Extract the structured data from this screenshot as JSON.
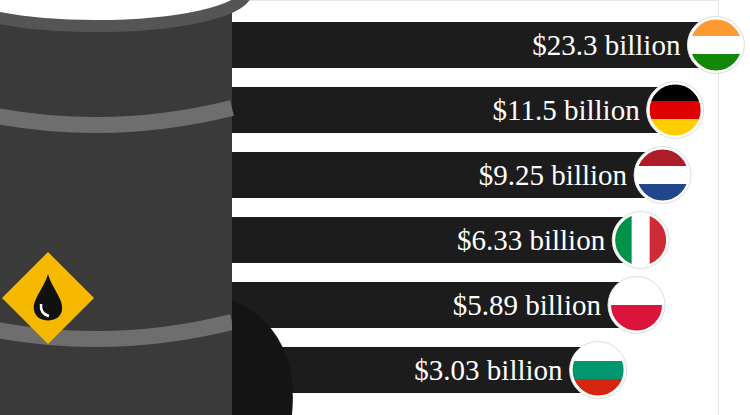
{
  "chart_data": {
    "type": "bar",
    "orientation": "horizontal",
    "categories": [
      null,
      null,
      null,
      null,
      null,
      null
    ],
    "values": [
      23.3,
      11.5,
      9.25,
      6.33,
      5.89,
      3.03
    ],
    "value_labels": [
      "$23.3 billion",
      "$11.5 billion",
      "$9.25 billion",
      "$6.33 billion",
      "$5.89 billion",
      "$3.03 billion"
    ],
    "data_labels": true,
    "color": "#1c1c1c",
    "log": "x",
    "xlim": [
      0.0001,
      25
    ],
    "tick_labels": false
  }
}
